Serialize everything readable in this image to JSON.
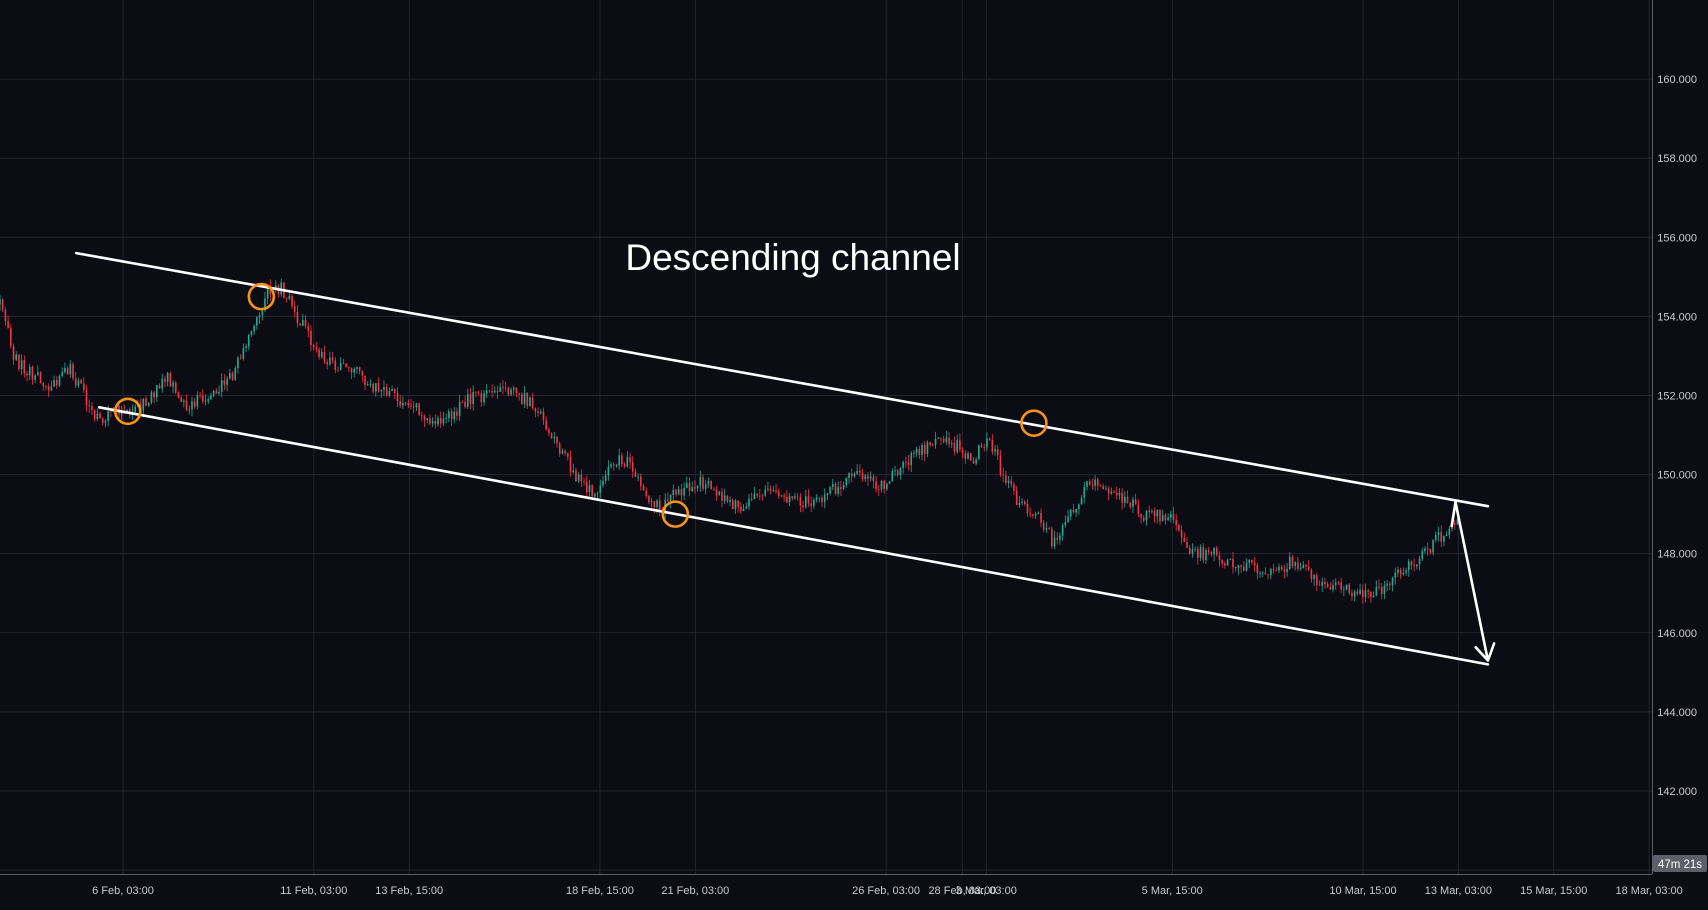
{
  "colors": {
    "background": "#0b0c14",
    "grid": "#23252f",
    "axis_line": "#5d606b",
    "axis_text": "#c8cad3",
    "up_candle": "#22ab94",
    "down_candle": "#f23645",
    "channel_line": "#ffffff",
    "touch_marker": "#f7931a",
    "countdown_bg": "#5d606b"
  },
  "chart_data": {
    "type": "candlestick",
    "title": "Descending channel",
    "timeframe_countdown": "47m 21s",
    "grid": true,
    "y_axis": {
      "position": "right",
      "range": [
        139.9,
        162.0
      ],
      "ticks": [
        {
          "value": 160,
          "label": "160.000"
        },
        {
          "value": 158,
          "label": "158.000"
        },
        {
          "value": 156,
          "label": "156.000"
        },
        {
          "value": 154,
          "label": "154.000"
        },
        {
          "value": 152,
          "label": "152.000"
        },
        {
          "value": 150,
          "label": "150.000"
        },
        {
          "value": 148,
          "label": "148.000"
        },
        {
          "value": 146,
          "label": "146.000"
        },
        {
          "value": 144,
          "label": "144.000"
        },
        {
          "value": 142,
          "label": "142.000"
        }
      ]
    },
    "x_axis": {
      "range_days": [
        -3.1,
        40.2
      ],
      "ticks": [
        {
          "day": 0.125,
          "label": "6 Feb, 03:00"
        },
        {
          "day": 5.125,
          "label": "11 Feb, 03:00"
        },
        {
          "day": 7.625,
          "label": "13 Feb, 15:00"
        },
        {
          "day": 12.625,
          "label": "18 Feb, 15:00"
        },
        {
          "day": 15.125,
          "label": "21 Feb, 03:00"
        },
        {
          "day": 20.125,
          "label": "26 Feb, 03:00"
        },
        {
          "day": 22.125,
          "label": "28 Feb, 03:00"
        },
        {
          "day": 22.75,
          "label": "3 Mar, 03:00"
        },
        {
          "day": 27.625,
          "label": "5 Mar, 15:00"
        },
        {
          "day": 32.625,
          "label": "10 Mar, 15:00"
        },
        {
          "day": 35.125,
          "label": "13 Mar, 03:00"
        },
        {
          "day": 37.625,
          "label": "15 Mar, 15:00"
        },
        {
          "day": 40.125,
          "label": "18 Mar, 03:00"
        }
      ]
    },
    "price_path": [
      [
        -3.1,
        154.3
      ],
      [
        -2.7,
        152.9
      ],
      [
        -2.2,
        152.5
      ],
      [
        -1.7,
        152.2
      ],
      [
        -1.3,
        152.7
      ],
      [
        -0.9,
        152.0
      ],
      [
        -0.5,
        151.3
      ],
      [
        0.0,
        151.6
      ],
      [
        0.5,
        151.7
      ],
      [
        0.9,
        152.0
      ],
      [
        1.3,
        152.4
      ],
      [
        1.8,
        151.8
      ],
      [
        2.4,
        152.0
      ],
      [
        3.0,
        152.5
      ],
      [
        3.5,
        153.6
      ],
      [
        3.9,
        154.6
      ],
      [
        4.3,
        154.7
      ],
      [
        4.8,
        153.8
      ],
      [
        5.2,
        153.1
      ],
      [
        5.7,
        152.8
      ],
      [
        6.2,
        152.6
      ],
      [
        6.7,
        152.2
      ],
      [
        7.2,
        152.0
      ],
      [
        7.7,
        151.7
      ],
      [
        8.2,
        151.4
      ],
      [
        8.7,
        151.5
      ],
      [
        9.2,
        151.9
      ],
      [
        9.7,
        152.0
      ],
      [
        10.2,
        152.1
      ],
      [
        10.7,
        151.9
      ],
      [
        11.2,
        151.3
      ],
      [
        11.7,
        150.4
      ],
      [
        12.2,
        149.7
      ],
      [
        12.6,
        149.5
      ],
      [
        13.0,
        150.4
      ],
      [
        13.4,
        150.3
      ],
      [
        13.8,
        149.6
      ],
      [
        14.2,
        149.1
      ],
      [
        14.7,
        149.6
      ],
      [
        15.3,
        149.8
      ],
      [
        15.8,
        149.5
      ],
      [
        16.3,
        149.1
      ],
      [
        16.8,
        149.5
      ],
      [
        17.3,
        149.6
      ],
      [
        17.8,
        149.3
      ],
      [
        18.4,
        149.4
      ],
      [
        19.0,
        149.8
      ],
      [
        19.5,
        150.0
      ],
      [
        20.0,
        149.7
      ],
      [
        20.5,
        150.2
      ],
      [
        21.0,
        150.6
      ],
      [
        21.5,
        150.9
      ],
      [
        22.0,
        150.7
      ],
      [
        22.4,
        150.4
      ],
      [
        22.8,
        151.0
      ],
      [
        23.1,
        150.2
      ],
      [
        23.6,
        149.3
      ],
      [
        24.1,
        149.0
      ],
      [
        24.5,
        148.3
      ],
      [
        24.9,
        148.9
      ],
      [
        25.3,
        149.6
      ],
      [
        25.7,
        149.9
      ],
      [
        26.1,
        149.5
      ],
      [
        26.5,
        149.3
      ],
      [
        27.0,
        148.9
      ],
      [
        27.5,
        149.0
      ],
      [
        28.0,
        148.2
      ],
      [
        28.4,
        148.0
      ],
      [
        28.8,
        148.0
      ],
      [
        29.3,
        147.6
      ],
      [
        29.8,
        147.7
      ],
      [
        30.3,
        147.5
      ],
      [
        30.8,
        147.8
      ],
      [
        31.3,
        147.4
      ],
      [
        31.8,
        147.2
      ],
      [
        32.3,
        147.1
      ],
      [
        32.8,
        146.9
      ],
      [
        33.2,
        147.2
      ],
      [
        33.6,
        147.5
      ],
      [
        34.0,
        147.8
      ],
      [
        34.4,
        148.2
      ],
      [
        34.8,
        148.6
      ],
      [
        35.1,
        149.0
      ]
    ],
    "candle_count": 540,
    "annotations": {
      "channel_upper": [
        [
          -1.1,
          155.6
        ],
        [
          35.9,
          149.2
        ]
      ],
      "channel_lower": [
        [
          -0.5,
          151.7
        ],
        [
          35.9,
          145.2
        ]
      ],
      "touch_points": [
        [
          0.25,
          151.6
        ],
        [
          3.75,
          154.5
        ],
        [
          14.6,
          149.0
        ],
        [
          24.0,
          151.3
        ]
      ],
      "projection": [
        [
          34.95,
          148.7
        ],
        [
          35.05,
          149.3
        ],
        [
          35.9,
          145.3
        ]
      ]
    }
  }
}
